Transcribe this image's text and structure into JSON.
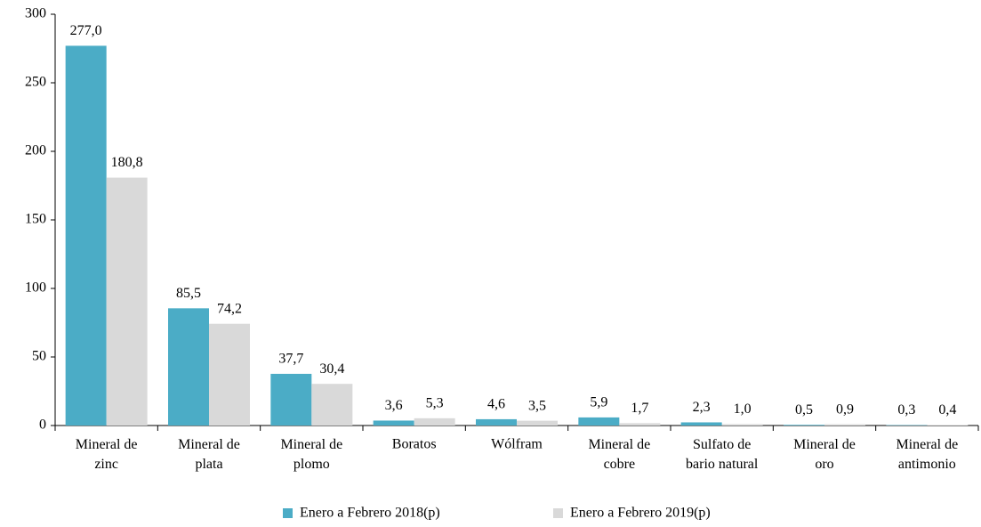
{
  "chart_data": {
    "type": "bar",
    "categories": [
      "Mineral de zinc",
      "Mineral de plata",
      "Mineral de plomo",
      "Boratos",
      "Wólfram",
      "Mineral de cobre",
      "Sulfato de bario natural",
      "Mineral de oro",
      "Mineral de antimonio"
    ],
    "series": [
      {
        "name": "Enero a Febrero 2018(p)",
        "color": "#4bacc6",
        "values": [
          277.0,
          85.5,
          37.7,
          3.6,
          4.6,
          5.9,
          2.3,
          0.5,
          0.3
        ],
        "value_labels": [
          "277,0",
          "85,5",
          "37,7",
          "3,6",
          "4,6",
          "5,9",
          "2,3",
          "0,5",
          "0,3"
        ]
      },
      {
        "name": "Enero a Febrero 2019(p)",
        "color": "#d9d9d9",
        "values": [
          180.8,
          74.2,
          30.4,
          5.3,
          3.5,
          1.7,
          1.0,
          0.9,
          0.4
        ],
        "value_labels": [
          "180,8",
          "74,2",
          "30,4",
          "5,3",
          "3,5",
          "1,7",
          "1,0",
          "0,9",
          "0,4"
        ]
      }
    ],
    "ylim": [
      0,
      300
    ],
    "yticks": [
      0,
      50,
      100,
      150,
      200,
      250,
      300
    ],
    "grid": false,
    "legend": "bottom"
  }
}
